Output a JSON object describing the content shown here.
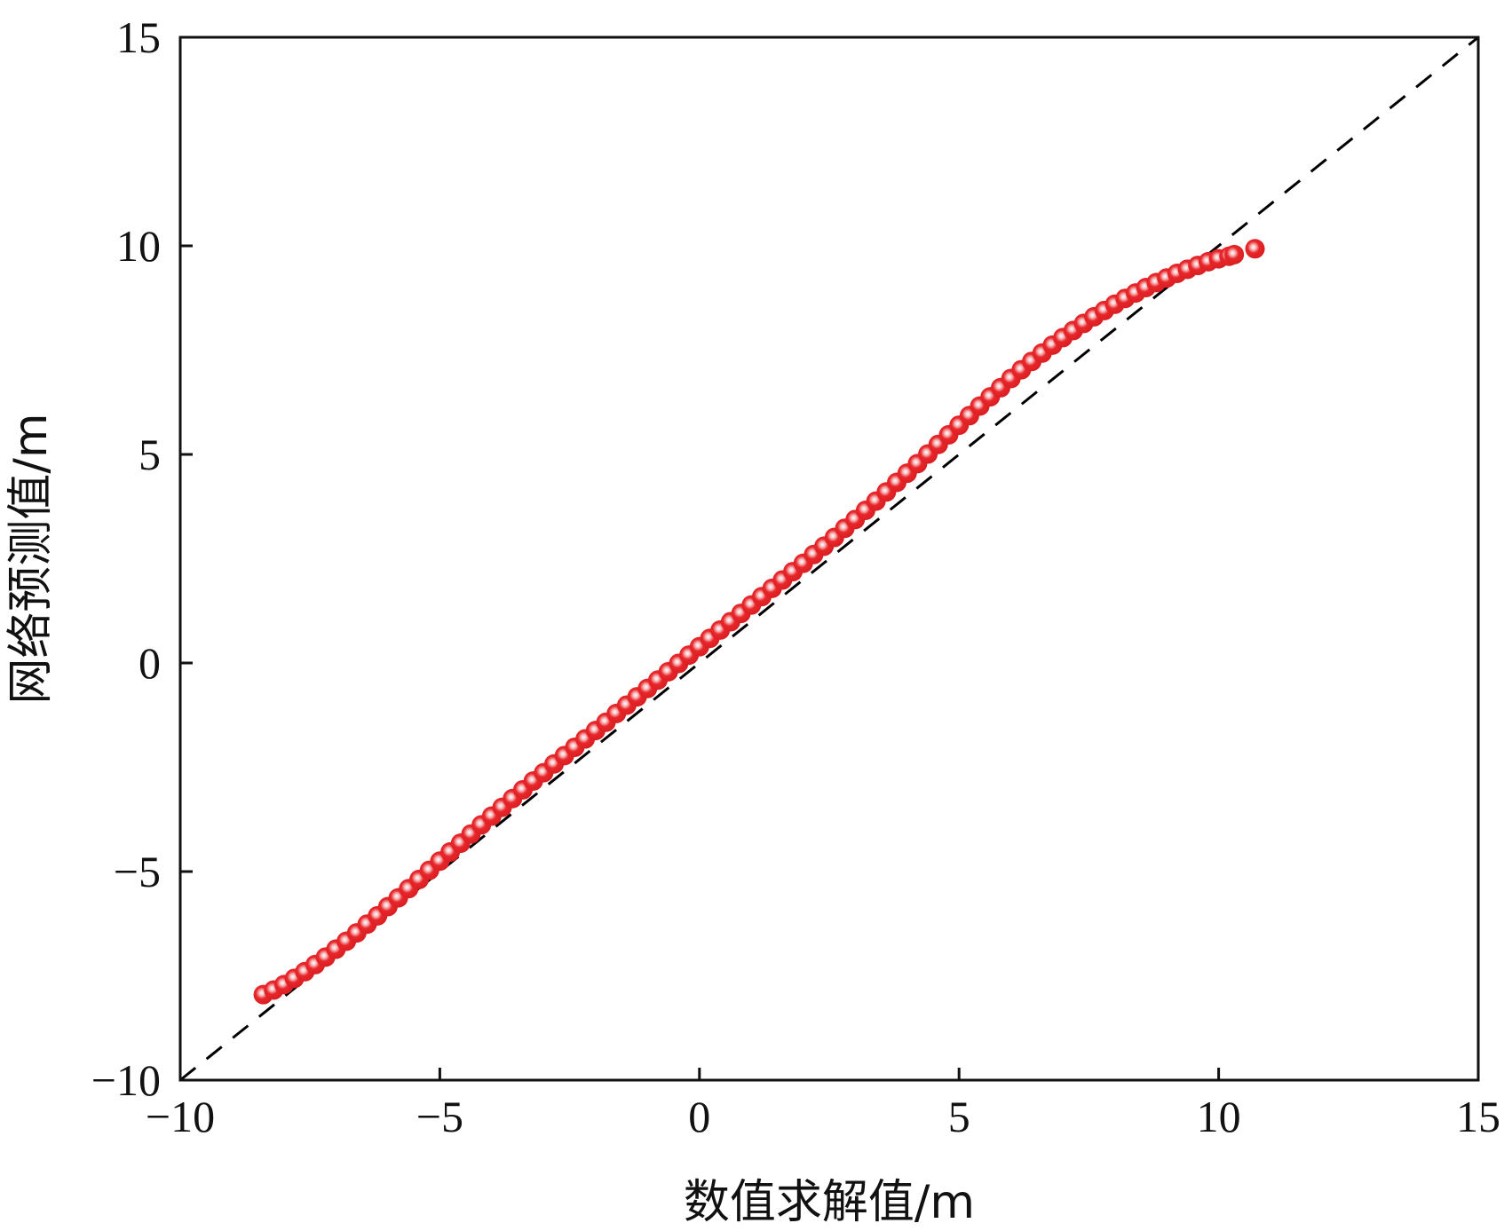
{
  "chart_data": {
    "type": "scatter",
    "title": "",
    "xlabel": "数值求解值/m",
    "ylabel": "网络预测值/m",
    "xlim": [
      -10,
      15
    ],
    "ylim": [
      -10,
      15
    ],
    "xticks": [
      "−10",
      "−5",
      "0",
      "5",
      "10",
      "15"
    ],
    "yticks": [
      "−10",
      "−5",
      "0",
      "5",
      "10",
      "15"
    ],
    "grid": false,
    "legend": "none",
    "reference_line": {
      "style": "dashed",
      "color": "#000000",
      "from": [
        -10,
        -10
      ],
      "to": [
        15,
        15
      ]
    },
    "marker_color": "#e8262a",
    "marker_highlight": "#ffffff",
    "series": [
      {
        "x": [
          -8.4,
          -8.2,
          -8.0,
          -7.8,
          -7.6,
          -7.4,
          -7.2,
          -7.0,
          -6.8,
          -6.6,
          -6.4,
          -6.2,
          -6.0,
          -5.8,
          -5.6,
          -5.4,
          -5.2,
          -5.0,
          -4.8,
          -4.6,
          -4.4,
          -4.2,
          -4.0,
          -3.8,
          -3.6,
          -3.4,
          -3.2,
          -3.0,
          -2.8,
          -2.6,
          -2.4,
          -2.2,
          -2.0,
          -1.8,
          -1.6,
          -1.4,
          -1.2,
          -1.0,
          -0.8,
          -0.6,
          -0.4,
          -0.2,
          0.0,
          0.2,
          0.4,
          0.6,
          0.8,
          1.0,
          1.2,
          1.4,
          1.6,
          1.8,
          2.0,
          2.2,
          2.4,
          2.6,
          2.8,
          3.0,
          3.2,
          3.4,
          3.6,
          3.8,
          4.0,
          4.2,
          4.4,
          4.6,
          4.8,
          5.0,
          5.2,
          5.4,
          5.6,
          5.8,
          6.0,
          6.2,
          6.4,
          6.6,
          6.8,
          7.0,
          7.2,
          7.4,
          7.6,
          7.8,
          8.0,
          8.2,
          8.4,
          8.6,
          8.8,
          9.0,
          9.2,
          9.4,
          9.6,
          9.8,
          10.0,
          10.2,
          10.3,
          10.7
        ],
        "y": [
          -7.95,
          -7.84,
          -7.71,
          -7.56,
          -7.4,
          -7.23,
          -7.05,
          -6.86,
          -6.67,
          -6.47,
          -6.26,
          -6.06,
          -5.84,
          -5.63,
          -5.41,
          -5.19,
          -4.97,
          -4.75,
          -4.53,
          -4.32,
          -4.1,
          -3.88,
          -3.67,
          -3.46,
          -3.25,
          -3.04,
          -2.83,
          -2.63,
          -2.42,
          -2.22,
          -2.02,
          -1.82,
          -1.62,
          -1.42,
          -1.21,
          -1.01,
          -0.81,
          -0.61,
          -0.41,
          -0.21,
          -0.01,
          0.19,
          0.39,
          0.59,
          0.79,
          0.99,
          1.19,
          1.39,
          1.59,
          1.79,
          1.99,
          2.19,
          2.39,
          2.6,
          2.8,
          3.01,
          3.23,
          3.44,
          3.66,
          3.88,
          4.1,
          4.33,
          4.55,
          4.78,
          5.01,
          5.24,
          5.47,
          5.7,
          5.93,
          6.16,
          6.38,
          6.6,
          6.82,
          7.03,
          7.23,
          7.43,
          7.62,
          7.8,
          7.97,
          8.14,
          8.3,
          8.45,
          8.6,
          8.74,
          8.87,
          9.0,
          9.12,
          9.23,
          9.34,
          9.44,
          9.53,
          9.62,
          9.69,
          9.75,
          9.79,
          9.93
        ]
      }
    ]
  }
}
